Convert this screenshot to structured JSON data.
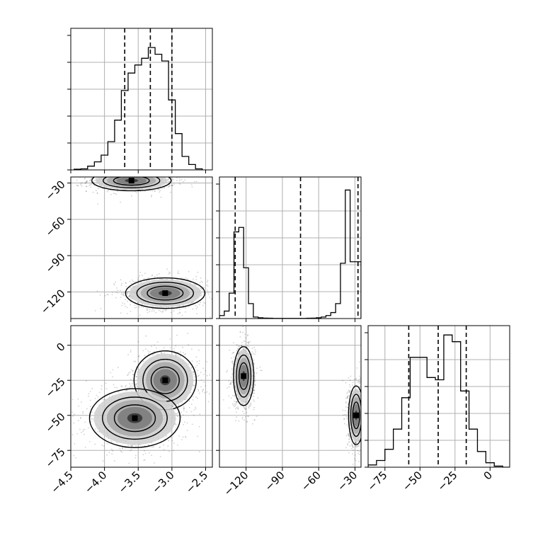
{
  "chart_data": {
    "type": "corner",
    "grid": true,
    "quantile_line_style": "dashed",
    "parameters": [
      {
        "range": [
          -4.5,
          -2.4
        ],
        "ticks": [
          -4.5,
          -4.0,
          -3.5,
          -3.0,
          -2.5
        ],
        "tick_labels": [
          "−4.5",
          "−4.0",
          "−3.5",
          "−3.0",
          "−2.5"
        ],
        "quantiles": [
          -3.7,
          -3.32,
          -3.0
        ]
      },
      {
        "range": [
          -142,
          -25
        ],
        "ticks": [
          -120,
          -90,
          -60,
          -30
        ],
        "tick_labels": [
          "−120",
          "−90",
          "−60",
          "−30"
        ],
        "quantiles": [
          -129,
          -75,
          -27.5
        ]
      },
      {
        "range": [
          -87,
          14
        ],
        "ticks": [
          -75,
          -50,
          -25,
          0
        ],
        "tick_labels": [
          "−75",
          "−50",
          "−25",
          "0"
        ],
        "quantiles": [
          -58,
          -37,
          -17
        ]
      }
    ],
    "marginals": [
      {
        "parameter": 0,
        "bin_edges": [
          -4.45,
          -4.35,
          -4.25,
          -4.15,
          -4.05,
          -3.95,
          -3.85,
          -3.75,
          -3.65,
          -3.55,
          -3.45,
          -3.35,
          -3.25,
          -3.15,
          -3.05,
          -2.95,
          -2.85,
          -2.75,
          -2.65,
          -2.55
        ],
        "counts": [
          0.5,
          0.8,
          2.8,
          6,
          11,
          21,
          37,
          59,
          72,
          78,
          83,
          91,
          86,
          81,
          52,
          27,
          10,
          4,
          0.8
        ],
        "ymax": 100
      },
      {
        "parameter": 1,
        "bin_edges": [
          -142,
          -138,
          -134,
          -130,
          -126,
          -122,
          -118,
          -114,
          -110,
          -106,
          -102,
          -98,
          -94,
          -90,
          -86,
          -82,
          -78,
          -74,
          -70,
          -66,
          -62,
          -58,
          -54,
          -50,
          -46,
          -42,
          -38,
          -34,
          -30,
          -26,
          -25
        ],
        "counts": [
          2,
          5,
          17,
          58,
          61,
          34,
          10,
          1,
          0.5,
          0.3,
          0.2,
          0.1,
          0.1,
          0.1,
          0.1,
          0.1,
          0.1,
          0.1,
          0.2,
          0.3,
          0.5,
          1,
          2,
          4,
          10,
          37,
          86,
          38,
          38,
          38
        ],
        "ymax": 90
      },
      {
        "parameter": 2,
        "bin_edges": [
          -87,
          -81,
          -75,
          -69,
          -63,
          -57,
          -51,
          -45,
          -39,
          -33,
          -27,
          -21,
          -15,
          -9,
          -3,
          3,
          9,
          14
        ],
        "counts": [
          1,
          3,
          8,
          17,
          31,
          49,
          49,
          40,
          39,
          59,
          56,
          34,
          17,
          7,
          2,
          0.5,
          0
        ],
        "ymax": 60
      }
    ],
    "joint_modes": [
      {
        "pair": [
          0,
          1
        ],
        "center": [
          -3.6,
          -28
        ],
        "sd": [
          0.28,
          4
        ],
        "weight": 1
      },
      {
        "pair": [
          0,
          1
        ],
        "center": [
          -3.1,
          -121
        ],
        "sd": [
          0.28,
          6
        ],
        "weight": 1
      },
      {
        "pair": [
          0,
          2
        ],
        "center": [
          -3.1,
          -25
        ],
        "sd": [
          0.22,
          10
        ],
        "weight": 1
      },
      {
        "pair": [
          0,
          2
        ],
        "center": [
          -3.55,
          -52
        ],
        "sd": [
          0.32,
          10
        ],
        "weight": 1
      },
      {
        "pair": [
          1,
          2
        ],
        "center": [
          -122,
          -22
        ],
        "sd": [
          4,
          10
        ],
        "weight": 1
      },
      {
        "pair": [
          1,
          2
        ],
        "center": [
          -29,
          -50
        ],
        "sd": [
          3,
          10
        ],
        "weight": 1
      }
    ]
  }
}
